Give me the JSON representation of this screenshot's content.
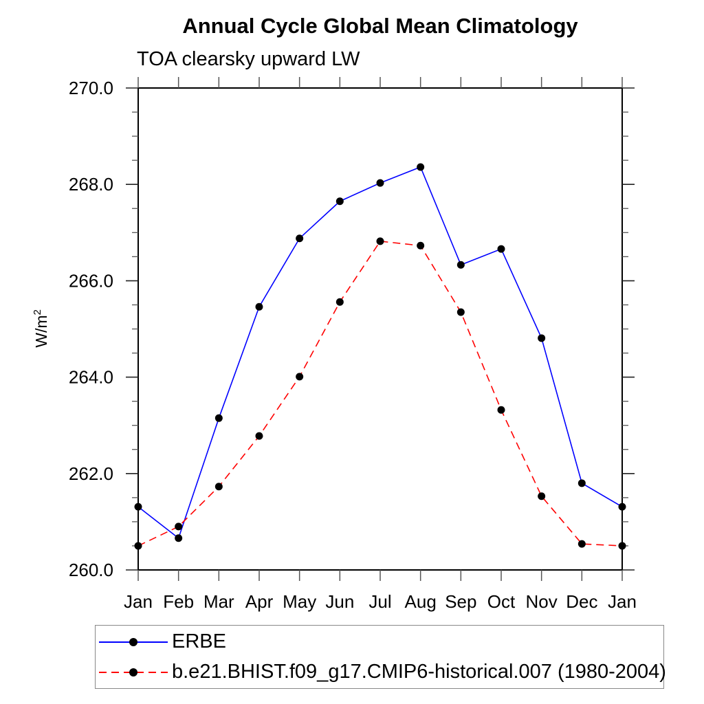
{
  "page": {
    "background": "#ffffff"
  },
  "chart_data": {
    "type": "line",
    "title": "Annual Cycle Global Mean Climatology",
    "subtitle": "TOA clearsky upward LW",
    "ylabel": {
      "base": "W/m",
      "exponent": "2"
    },
    "x_tick_labels": [
      "Jan",
      "Feb",
      "Mar",
      "Apr",
      "May",
      "Jun",
      "Jul",
      "Aug",
      "Sep",
      "Oct",
      "Nov",
      "Dec",
      "Jan"
    ],
    "y_axis": {
      "min": 260.0,
      "max": 270.0,
      "major_step": 2.0,
      "minor_step": 0.5,
      "major_ticks": [
        260.0,
        262.0,
        264.0,
        266.0,
        268.0,
        270.0
      ],
      "major_tick_labels": [
        "260.0",
        "262.0",
        "264.0",
        "266.0",
        "268.0",
        "270.0"
      ]
    },
    "grid": false,
    "legend_position": "bottom-left",
    "marker": "filled-circle",
    "marker_color": "#000000",
    "axis_color": "#000000",
    "series": [
      {
        "name": "ERBE",
        "color": "#0000ff",
        "style": "solid",
        "values": [
          261.31,
          260.66,
          263.15,
          265.46,
          266.88,
          267.65,
          268.03,
          268.36,
          266.33,
          266.66,
          264.81,
          261.8,
          261.31
        ]
      },
      {
        "name": "b.e21.BHIST.f09_g17.CMIP6-historical.007 (1980-2004)",
        "color": "#ff0000",
        "style": "dashed",
        "values": [
          260.5,
          260.9,
          261.73,
          262.78,
          264.01,
          265.56,
          266.82,
          266.73,
          265.35,
          263.32,
          261.53,
          260.54,
          260.5
        ]
      }
    ]
  }
}
